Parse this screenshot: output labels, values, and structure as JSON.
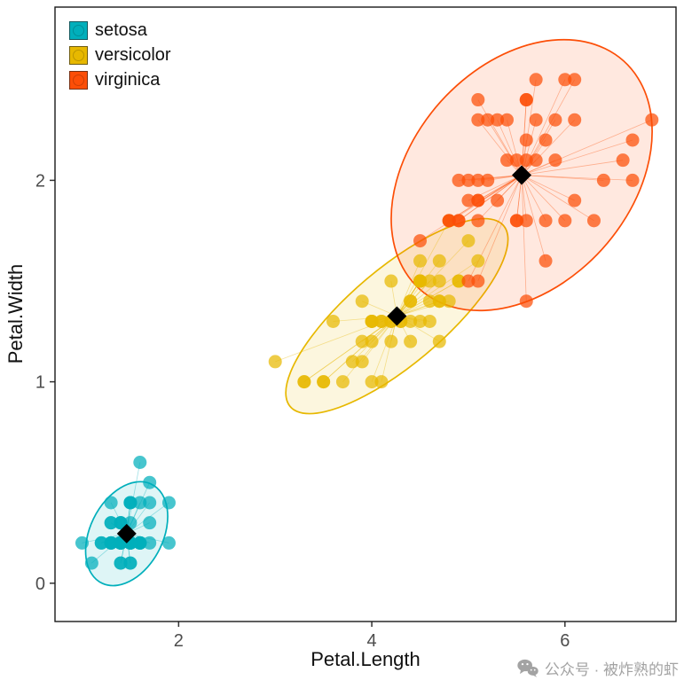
{
  "watermark": {
    "text": "公众号 · 被炸熟的虾",
    "icon": "wechat-icon"
  },
  "chart_data": {
    "type": "scatter",
    "title": "",
    "xlabel": "Petal.Length",
    "ylabel": "Petal.Width",
    "xlim": [
      0.72,
      7.15
    ],
    "ylim": [
      -0.19,
      2.86
    ],
    "x_ticks": [
      2,
      4,
      6
    ],
    "y_ticks": [
      0,
      1,
      2
    ],
    "grid": false,
    "legend_position": "top-left-inside",
    "ellipse_level": 0.95,
    "centroid_marker": "black-diamond",
    "series": [
      {
        "name": "setosa",
        "color": "#00AFBB",
        "centroid": [
          1.462,
          0.246
        ],
        "points": [
          [
            1.4,
            0.2
          ],
          [
            1.4,
            0.2
          ],
          [
            1.3,
            0.2
          ],
          [
            1.5,
            0.2
          ],
          [
            1.4,
            0.2
          ],
          [
            1.7,
            0.4
          ],
          [
            1.4,
            0.3
          ],
          [
            1.5,
            0.2
          ],
          [
            1.4,
            0.2
          ],
          [
            1.5,
            0.1
          ],
          [
            1.5,
            0.2
          ],
          [
            1.6,
            0.2
          ],
          [
            1.4,
            0.1
          ],
          [
            1.1,
            0.1
          ],
          [
            1.2,
            0.2
          ],
          [
            1.5,
            0.4
          ],
          [
            1.3,
            0.4
          ],
          [
            1.4,
            0.3
          ],
          [
            1.7,
            0.3
          ],
          [
            1.5,
            0.3
          ],
          [
            1.7,
            0.2
          ],
          [
            1.5,
            0.4
          ],
          [
            1.0,
            0.2
          ],
          [
            1.7,
            0.5
          ],
          [
            1.9,
            0.2
          ],
          [
            1.6,
            0.2
          ],
          [
            1.6,
            0.4
          ],
          [
            1.5,
            0.2
          ],
          [
            1.4,
            0.2
          ],
          [
            1.6,
            0.2
          ],
          [
            1.6,
            0.2
          ],
          [
            1.5,
            0.4
          ],
          [
            1.5,
            0.1
          ],
          [
            1.4,
            0.2
          ],
          [
            1.5,
            0.2
          ],
          [
            1.2,
            0.2
          ],
          [
            1.3,
            0.2
          ],
          [
            1.4,
            0.1
          ],
          [
            1.3,
            0.2
          ],
          [
            1.5,
            0.2
          ],
          [
            1.3,
            0.3
          ],
          [
            1.3,
            0.3
          ],
          [
            1.3,
            0.2
          ],
          [
            1.6,
            0.6
          ],
          [
            1.9,
            0.4
          ],
          [
            1.4,
            0.3
          ],
          [
            1.6,
            0.2
          ],
          [
            1.4,
            0.2
          ],
          [
            1.5,
            0.2
          ],
          [
            1.4,
            0.2
          ]
        ]
      },
      {
        "name": "versicolor",
        "color": "#E7B800",
        "centroid": [
          4.26,
          1.326
        ],
        "points": [
          [
            4.7,
            1.4
          ],
          [
            4.5,
            1.5
          ],
          [
            4.9,
            1.5
          ],
          [
            4.0,
            1.3
          ],
          [
            4.6,
            1.5
          ],
          [
            4.5,
            1.3
          ],
          [
            4.7,
            1.6
          ],
          [
            3.3,
            1.0
          ],
          [
            4.6,
            1.3
          ],
          [
            3.9,
            1.4
          ],
          [
            3.5,
            1.0
          ],
          [
            4.2,
            1.5
          ],
          [
            4.0,
            1.0
          ],
          [
            4.7,
            1.4
          ],
          [
            3.6,
            1.3
          ],
          [
            4.4,
            1.4
          ],
          [
            4.5,
            1.5
          ],
          [
            4.1,
            1.0
          ],
          [
            4.5,
            1.5
          ],
          [
            3.9,
            1.1
          ],
          [
            4.8,
            1.8
          ],
          [
            4.0,
            1.3
          ],
          [
            4.9,
            1.5
          ],
          [
            4.7,
            1.2
          ],
          [
            4.3,
            1.3
          ],
          [
            4.4,
            1.4
          ],
          [
            4.8,
            1.4
          ],
          [
            5.0,
            1.7
          ],
          [
            4.5,
            1.5
          ],
          [
            3.5,
            1.0
          ],
          [
            3.8,
            1.1
          ],
          [
            3.7,
            1.0
          ],
          [
            3.9,
            1.2
          ],
          [
            5.1,
            1.6
          ],
          [
            4.5,
            1.5
          ],
          [
            4.5,
            1.6
          ],
          [
            4.7,
            1.5
          ],
          [
            4.4,
            1.3
          ],
          [
            4.1,
            1.3
          ],
          [
            4.0,
            1.3
          ],
          [
            4.4,
            1.2
          ],
          [
            4.6,
            1.4
          ],
          [
            4.0,
            1.2
          ],
          [
            3.3,
            1.0
          ],
          [
            4.2,
            1.3
          ],
          [
            4.2,
            1.2
          ],
          [
            4.2,
            1.3
          ],
          [
            4.3,
            1.3
          ],
          [
            3.0,
            1.1
          ],
          [
            4.1,
            1.3
          ]
        ]
      },
      {
        "name": "virginica",
        "color": "#FC4E07",
        "centroid": [
          5.552,
          2.026
        ],
        "points": [
          [
            6.0,
            2.5
          ],
          [
            5.1,
            1.9
          ],
          [
            5.9,
            2.1
          ],
          [
            5.6,
            1.8
          ],
          [
            5.8,
            2.2
          ],
          [
            6.6,
            2.1
          ],
          [
            4.5,
            1.7
          ],
          [
            6.3,
            1.8
          ],
          [
            5.8,
            1.8
          ],
          [
            6.1,
            2.5
          ],
          [
            5.1,
            2.0
          ],
          [
            5.3,
            1.9
          ],
          [
            5.5,
            2.1
          ],
          [
            5.0,
            2.0
          ],
          [
            5.1,
            2.4
          ],
          [
            5.3,
            2.3
          ],
          [
            5.5,
            1.8
          ],
          [
            6.7,
            2.2
          ],
          [
            6.9,
            2.3
          ],
          [
            5.0,
            1.5
          ],
          [
            5.7,
            2.3
          ],
          [
            4.9,
            2.0
          ],
          [
            6.7,
            2.0
          ],
          [
            4.9,
            1.8
          ],
          [
            5.7,
            2.1
          ],
          [
            6.0,
            1.8
          ],
          [
            4.8,
            1.8
          ],
          [
            4.9,
            1.8
          ],
          [
            5.6,
            2.1
          ],
          [
            5.8,
            1.6
          ],
          [
            6.1,
            1.9
          ],
          [
            6.4,
            2.0
          ],
          [
            5.6,
            2.2
          ],
          [
            5.1,
            1.5
          ],
          [
            5.6,
            1.4
          ],
          [
            6.1,
            2.3
          ],
          [
            5.6,
            2.4
          ],
          [
            5.5,
            1.8
          ],
          [
            4.8,
            1.8
          ],
          [
            5.4,
            2.1
          ],
          [
            5.6,
            2.4
          ],
          [
            5.1,
            2.3
          ],
          [
            5.1,
            1.9
          ],
          [
            5.9,
            2.3
          ],
          [
            5.7,
            2.5
          ],
          [
            5.2,
            2.3
          ],
          [
            5.0,
            1.9
          ],
          [
            5.2,
            2.0
          ],
          [
            5.4,
            2.3
          ],
          [
            5.1,
            1.8
          ]
        ]
      }
    ]
  }
}
